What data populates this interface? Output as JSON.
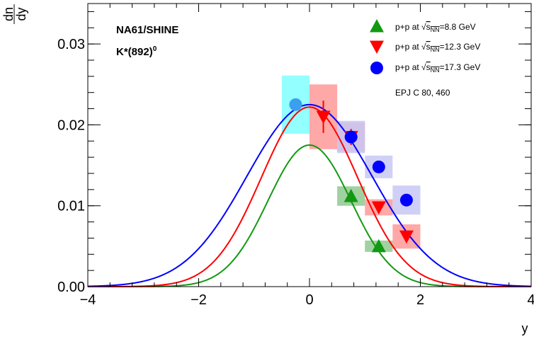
{
  "chart_data": {
    "type": "scatter",
    "title_lines": [
      "NA61/SHINE",
      "K*(892)",
      "0"
    ],
    "reference": "EPJ C 80, 460",
    "xlabel": "y",
    "ylabel_num": "dn",
    "ylabel_den": "dy",
    "xlim": [
      -4,
      4
    ],
    "ylim": [
      0,
      0.035
    ],
    "x_ticks": [
      -4,
      -2,
      0,
      2,
      4
    ],
    "x_tick_labels": [
      "−4",
      "−2",
      "0",
      "2",
      "4"
    ],
    "y_ticks": [
      0,
      0.01,
      0.02,
      0.03
    ],
    "y_tick_labels": [
      "0.00",
      "0.01",
      "0.02",
      "0.03"
    ],
    "legend_position": "top-right",
    "series": [
      {
        "name": "p+p at √s_NN=8.8 GeV",
        "legend_prefix": "p+p at ",
        "legend_sqrt": "s",
        "legend_sub": "NN",
        "legend_suffix": "=8.8 GeV",
        "marker": "triangle-up",
        "color": "#129912",
        "box_color": "#8fc98f",
        "points": [
          {
            "x": 0.75,
            "y": 0.0112,
            "err": 0.0008,
            "sys": 0.0012
          },
          {
            "x": 1.25,
            "y": 0.005,
            "err": 0.0004,
            "sys": 0.0007
          }
        ],
        "fit": {
          "amp": 0.0175,
          "sigma": 0.75
        }
      },
      {
        "name": "p+p at √s_NN=12.3 GeV",
        "legend_prefix": "p+p at ",
        "legend_sqrt": "s",
        "legend_sub": "NN",
        "legend_suffix": "=12.3 GeV",
        "marker": "triangle-down",
        "color": "#ff0000",
        "box_color": "#ff9999",
        "points": [
          {
            "x": 0.25,
            "y": 0.021,
            "err": 0.002,
            "sys": 0.004
          },
          {
            "x": 0.75,
            "y": 0.0185,
            "err": 0.001,
            "sys": 0.0018
          },
          {
            "x": 1.25,
            "y": 0.0098,
            "err": 0.0005,
            "sys": 0.001
          },
          {
            "x": 1.75,
            "y": 0.0062,
            "err": 0.0005,
            "sys": 0.0015
          }
        ],
        "fit": {
          "amp": 0.0222,
          "sigma": 0.87
        }
      },
      {
        "name": "p+p at √s_NN=17.3 GeV",
        "legend_prefix": "p+p at ",
        "legend_sqrt": "s",
        "legend_sub": "NN",
        "legend_suffix": "=17.3 GeV",
        "marker": "circle",
        "color": "#0000ff",
        "box_color": "#c8c8f5",
        "points": [
          {
            "x": 0.75,
            "y": 0.0185,
            "err": 0.0005,
            "sys": 0.002
          },
          {
            "x": 1.25,
            "y": 0.0148,
            "err": 0.0005,
            "sys": 0.0014
          },
          {
            "x": 1.75,
            "y": 0.0107,
            "err": 0.0005,
            "sys": 0.0018
          }
        ],
        "fit": {
          "amp": 0.0225,
          "sigma": 1.13
        }
      },
      {
        "name": "reflected",
        "marker": "circle",
        "color": "#3b9ff0",
        "box_color": "#80ffff",
        "points": [
          {
            "x": -0.25,
            "y": 0.0225,
            "err": 0.0007,
            "sys": 0.0036
          }
        ]
      }
    ]
  }
}
